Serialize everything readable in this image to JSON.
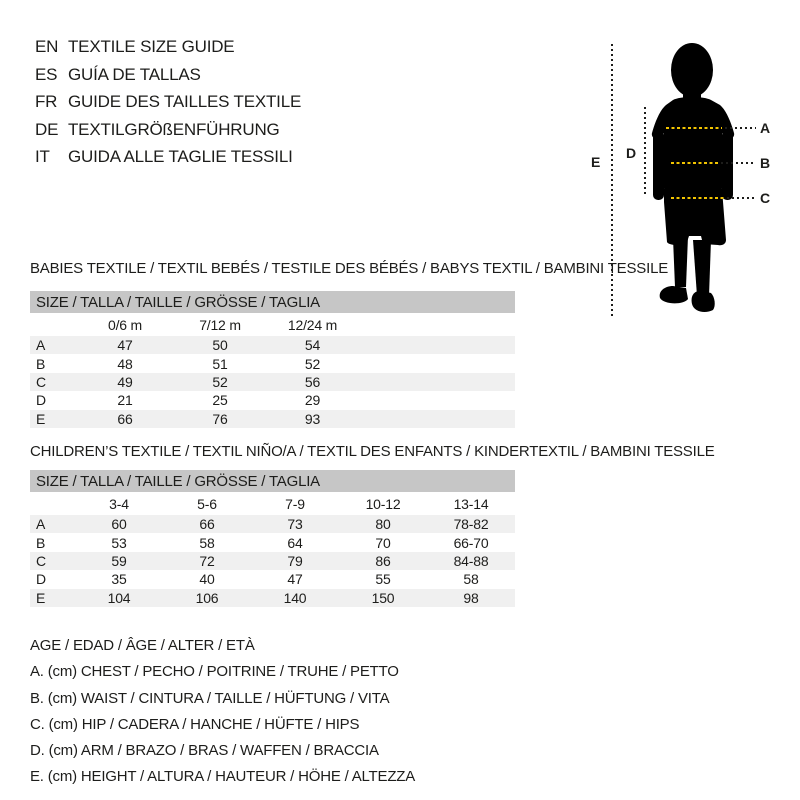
{
  "colors": {
    "text": "#1d1d1b",
    "silhouette": "#000000",
    "size_header_bar": "#c6c6c6",
    "row_stripe": "#f0f0f0",
    "dot_yellow": "#f2c400",
    "dot_black": "#1d1d1b"
  },
  "header": {
    "languages": [
      {
        "code": "EN",
        "title": "TEXTILE SIZE GUIDE"
      },
      {
        "code": "ES",
        "title": "GUÍA DE TALLAS"
      },
      {
        "code": "FR",
        "title": "GUIDE DES TAILLES TEXTILE"
      },
      {
        "code": "DE",
        "title": "TEXTILGRÖßENFÜHRUNG"
      },
      {
        "code": "IT",
        "title": "GUIDA ALLE TAGLIE TESSILI"
      }
    ]
  },
  "figure": {
    "labels": {
      "a": "A",
      "b": "B",
      "c": "C",
      "d": "D",
      "e": "E"
    }
  },
  "babies_table": {
    "title": "BABIES TEXTILE / TEXTIL BEBÉS / TESTILE DES BÉBÉS / BABYS TEXTIL / BAMBINI TESSILE",
    "size_header": "SIZE / TALLA / TAILLE / GRÖSSE / TAGLIA",
    "columns": [
      "0/6 m",
      "7/12 m",
      "12/24 m"
    ],
    "rows": [
      {
        "label": "A",
        "values": [
          "47",
          "50",
          "54"
        ]
      },
      {
        "label": "B",
        "values": [
          "48",
          "51",
          "52"
        ]
      },
      {
        "label": "C",
        "values": [
          "49",
          "52",
          "56"
        ]
      },
      {
        "label": "D",
        "values": [
          "21",
          "25",
          "29"
        ]
      },
      {
        "label": "E",
        "values": [
          "66",
          "76",
          "93"
        ]
      }
    ]
  },
  "children_table": {
    "title": "CHILDREN’S TEXTILE / TEXTIL NIÑO/A / TEXTIL DES ENFANTS / KINDERTEXTIL / BAMBINI TESSILE",
    "size_header": "SIZE / TALLA / TAILLE / GRÖSSE / TAGLIA",
    "columns": [
      "3-4",
      "5-6",
      "7-9",
      "10-12",
      "13-14"
    ],
    "rows": [
      {
        "label": "A",
        "values": [
          "60",
          "66",
          "73",
          "80",
          "78-82"
        ]
      },
      {
        "label": "B",
        "values": [
          "53",
          "58",
          "64",
          "70",
          "66-70"
        ]
      },
      {
        "label": "C",
        "values": [
          "59",
          "72",
          "79",
          "86",
          "84-88"
        ]
      },
      {
        "label": "D",
        "values": [
          "35",
          "40",
          "47",
          "55",
          "58"
        ]
      },
      {
        "label": "E",
        "values": [
          "104",
          "106",
          "140",
          "150",
          "98"
        ]
      }
    ]
  },
  "legend": {
    "lines": [
      "AGE / EDAD / ÂGE / ALTER / ETÀ",
      "A. (cm) CHEST / PECHO / POITRINE / TRUHE / PETTO",
      "B. (cm) WAIST / CINTURA / TAILLE / HÜFTUNG / VITA",
      "C. (cm) HIP / CADERA / HANCHE / HÜFTE / HIPS",
      "D. (cm) ARM / BRAZO / BRAS / WAFFEN / BRACCIA",
      "E. (cm) HEIGHT / ALTURA / HAUTEUR / HÖHE / ALTEZZA"
    ]
  }
}
